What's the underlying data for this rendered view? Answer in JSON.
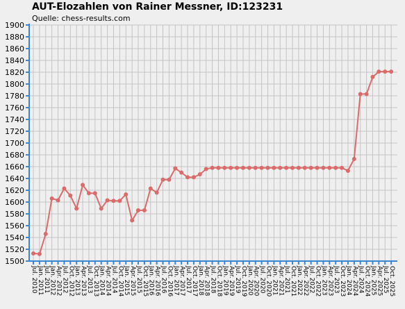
{
  "chart_data": {
    "type": "line",
    "title": "AUT-Elozahlen von Rainer Messner, ID:123231",
    "subtitle": "Quelle: chess-results.com",
    "xlabel": "",
    "ylabel": "",
    "ylim": [
      1500,
      1900
    ],
    "y_ticks": [
      1500,
      1520,
      1540,
      1560,
      1580,
      1600,
      1620,
      1640,
      1660,
      1680,
      1700,
      1720,
      1740,
      1760,
      1780,
      1800,
      1820,
      1840,
      1860,
      1880,
      1900
    ],
    "grid": true,
    "categories": [
      "Jul. 2010",
      "Jan. 2011",
      "Jul. 2011",
      "Jan. 2012",
      "Apr. 2012",
      "Jul. 2012",
      "Oct. 2012",
      "Jan. 2013",
      "Apr. 2013",
      "Jul. 2013",
      "Oct. 2013",
      "Jan. 2014",
      "Apr. 2014",
      "Jul. 2014",
      "Oct. 2014",
      "Jan. 2015",
      "Apr. 2015",
      "Jul. 2015",
      "Oct. 2015",
      "Jan. 2016",
      "Apr. 2016",
      "Jul. 2016",
      "Oct. 2016",
      "Jan. 2017",
      "Apr. 2017",
      "Jul. 2017",
      "Oct. 2017",
      "Jan. 2018",
      "Apr. 2018",
      "Jul. 2018",
      "Oct. 2018",
      "Jan. 2019",
      "Apr. 2019",
      "Jul. 2019",
      "Oct. 2019",
      "Jan. 2020",
      "Apr. 2020",
      "Jul. 2020",
      "Oct. 2020",
      "Jan. 2021",
      "Apr. 2021",
      "Jul. 2021",
      "Oct. 2021",
      "Jan. 2022",
      "Apr. 2022",
      "Jul. 2022",
      "Oct. 2022",
      "Jan. 2023",
      "Apr. 2023",
      "Jul. 2023",
      "Oct. 2023",
      "Jan. 2024",
      "Apr. 2024",
      "Jul. 2024",
      "Oct. 2024",
      "Jan. 2025",
      "Apr. 2025",
      "Jul. 2025",
      "Oct. 2025"
    ],
    "series": [
      {
        "color": "#d96b6b",
        "values": [
          1513,
          1512,
          1546,
          1606,
          1603,
          1623,
          1611,
          1589,
          1629,
          1615,
          1615,
          1589,
          1603,
          1602,
          1602,
          1613,
          1569,
          1586,
          1586,
          1623,
          1616,
          1638,
          1638,
          1657,
          1650,
          1642,
          1642,
          1647,
          1656,
          1658,
          1658,
          1658,
          1658,
          1658,
          1658,
          1658,
          1658,
          1658,
          1658,
          1658,
          1658,
          1658,
          1658,
          1658,
          1658,
          1658,
          1658,
          1658,
          1658,
          1658,
          1658,
          1653,
          1673,
          1783,
          1783,
          1812,
          1821,
          1821,
          1821
        ]
      }
    ],
    "colors": {
      "axis": "#3a86d4",
      "grid": "#c4c4c4",
      "background": "#efefef"
    }
  }
}
